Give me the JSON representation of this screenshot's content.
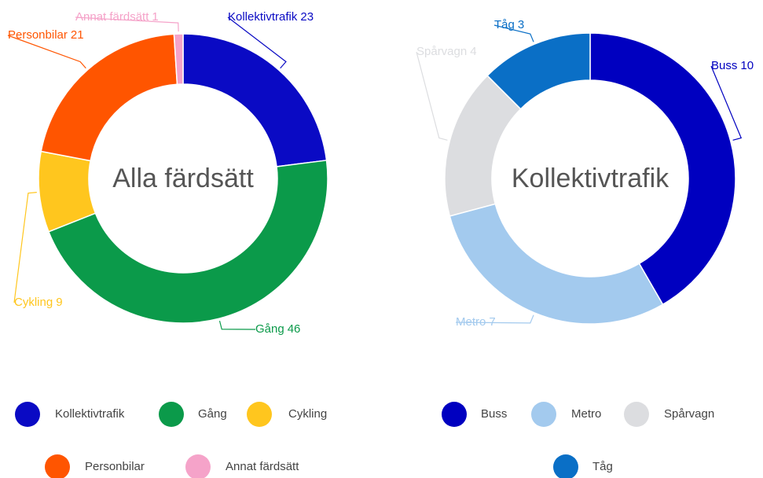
{
  "chart_data": [
    {
      "type": "pie",
      "title": "Alla färdsätt",
      "categories": [
        "Kollektivtrafik",
        "Gång",
        "Cykling",
        "Personbilar",
        "Annat färdsätt"
      ],
      "values": [
        23,
        46,
        9,
        21,
        1
      ],
      "colors": [
        "#0a0ac4",
        "#0b9a4a",
        "#ffc61e",
        "#ff5500",
        "#f5a3c9"
      ]
    },
    {
      "type": "pie",
      "title": "Kollektivtrafik",
      "categories": [
        "Buss",
        "Metro",
        "Spårvagn",
        "Tåg"
      ],
      "values": [
        10,
        7,
        4,
        3
      ],
      "colors": [
        "#0000c0",
        "#a3caee",
        "#dcdde0",
        "#0a6fc6"
      ]
    }
  ]
}
